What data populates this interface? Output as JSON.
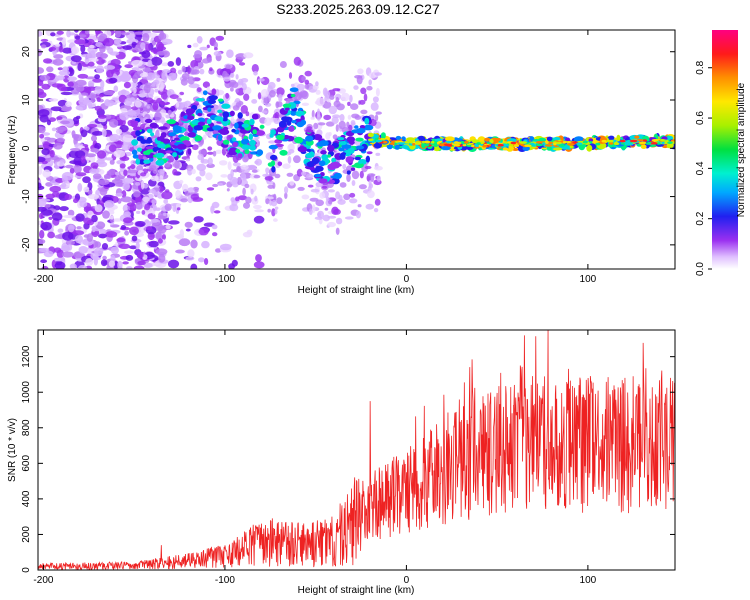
{
  "title": "S233.2025.263.09.12.C27",
  "chart_data": [
    {
      "type": "heatmap",
      "name": "spectrogram",
      "xlabel": "Height of straight line (km)",
      "ylabel": "Frequency (Hz)",
      "xlim": [
        -203,
        148
      ],
      "ylim": [
        -25,
        24.5
      ],
      "xticks": [
        -200,
        -100,
        0,
        100
      ],
      "yticks": [
        -20,
        -10,
        0,
        10,
        20
      ],
      "ridge": [
        {
          "x": -148,
          "y": 1.5
        },
        {
          "x": -135,
          "y": 1.0
        },
        {
          "x": -125,
          "y": 2.0
        },
        {
          "x": -115,
          "y": 5.0
        },
        {
          "x": -108,
          "y": 8.5
        },
        {
          "x": -95,
          "y": 2.5
        },
        {
          "x": -88,
          "y": 3.0
        },
        {
          "x": -80,
          "y": 1.5
        },
        {
          "x": -72,
          "y": -1.0
        },
        {
          "x": -62,
          "y": 8.5
        },
        {
          "x": -55,
          "y": 1.0
        },
        {
          "x": -45,
          "y": -3.0
        },
        {
          "x": -35,
          "y": -2.0
        },
        {
          "x": -22,
          "y": 2.0
        },
        {
          "x": 0,
          "y": 1.0
        },
        {
          "x": 50,
          "y": 0.8
        },
        {
          "x": 100,
          "y": 1.0
        },
        {
          "x": 148,
          "y": 1.5
        }
      ],
      "colorbar": {
        "label": "Normalized spectral amplitude",
        "range": [
          0,
          0.95
        ],
        "ticks": [
          0.0,
          0.2,
          0.4,
          0.6,
          0.8
        ]
      }
    },
    {
      "type": "line",
      "name": "snr",
      "xlabel": "Height of straight line (km)",
      "ylabel": "SNR (10 * v/v)",
      "xlim": [
        -203,
        148
      ],
      "ylim": [
        0,
        1350
      ],
      "xticks": [
        -200,
        -100,
        0,
        100
      ],
      "yticks": [
        0,
        200,
        400,
        600,
        800,
        1000,
        1200
      ],
      "color": "#ee2222",
      "trend": [
        {
          "x": -203,
          "y": 20
        },
        {
          "x": -150,
          "y": 25
        },
        {
          "x": -120,
          "y": 50
        },
        {
          "x": -100,
          "y": 80
        },
        {
          "x": -80,
          "y": 150
        },
        {
          "x": -60,
          "y": 140
        },
        {
          "x": -40,
          "y": 160
        },
        {
          "x": -25,
          "y": 320
        },
        {
          "x": -10,
          "y": 400
        },
        {
          "x": 10,
          "y": 500
        },
        {
          "x": 30,
          "y": 600
        },
        {
          "x": 50,
          "y": 680
        },
        {
          "x": 80,
          "y": 720
        },
        {
          "x": 110,
          "y": 700
        },
        {
          "x": 148,
          "y": 730
        }
      ],
      "peaks": [
        {
          "x": -135,
          "y": 140
        },
        {
          "x": -74,
          "y": 290
        },
        {
          "x": -20,
          "y": 950
        },
        {
          "x": 65,
          "y": 1320
        },
        {
          "x": 78,
          "y": 1350
        },
        {
          "x": 100,
          "y": 1080
        }
      ]
    }
  ]
}
